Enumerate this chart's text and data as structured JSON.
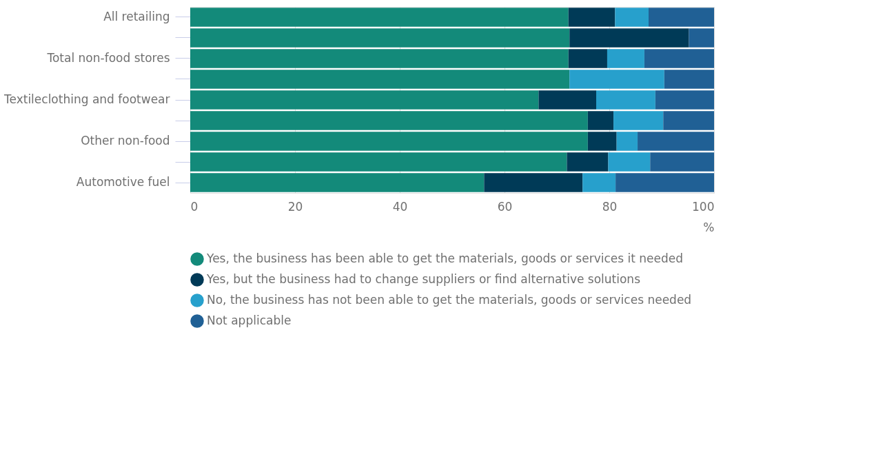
{
  "chart_data": {
    "type": "bar",
    "orientation": "horizontal",
    "stacked": true,
    "categories": [
      "All retailing",
      null,
      "Total non-food stores",
      null,
      "Textileclothing and footwear",
      null,
      "Other non-food",
      null,
      "Automotive fuel"
    ],
    "series": [
      {
        "name": "Yes, the business has been able to get the materials, goods or services it needed",
        "color": "#138a7a",
        "values": [
          72.2,
          72.4,
          72.2,
          72.4,
          66.5,
          75.9,
          75.9,
          71.9,
          56.1
        ]
      },
      {
        "name": "Yes, but the business had to change suppliers or find alternative solutions",
        "color": "#003a57",
        "values": [
          8.9,
          22.8,
          7.4,
          0,
          11.0,
          4.9,
          5.5,
          7.9,
          18.8
        ]
      },
      {
        "name": "No, the business has not been able to get the materials, goods or services needed",
        "color": "#27a0cc",
        "values": [
          6.4,
          0,
          7.1,
          18.1,
          11.3,
          9.5,
          4.0,
          8.0,
          6.3
        ]
      },
      {
        "name": "Not applicable",
        "color": "#206095",
        "values": [
          12.5,
          4.8,
          13.3,
          9.5,
          11.2,
          9.7,
          14.6,
          12.2,
          18.8
        ]
      }
    ],
    "xlim": [
      0,
      100
    ],
    "xticks": [
      0,
      20,
      40,
      60,
      80,
      100
    ],
    "xlabel": "%",
    "grid": "x",
    "legend": "bottom"
  }
}
